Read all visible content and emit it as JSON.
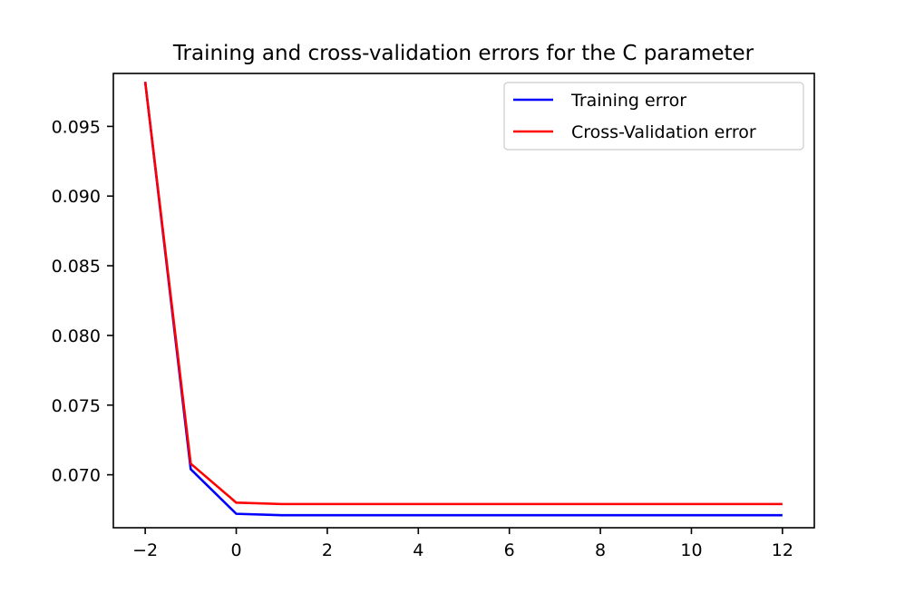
{
  "chart_data": {
    "type": "line",
    "title": "Training and cross-validation errors for the C parameter",
    "xlabel": "",
    "ylabel": "",
    "x": [
      -2,
      -1,
      0,
      1,
      2,
      3,
      4,
      5,
      6,
      7,
      8,
      9,
      10,
      11,
      12
    ],
    "xlim": [
      -2.7,
      12.7
    ],
    "ylim": [
      0.0662,
      0.0988
    ],
    "xticks": [
      -2,
      0,
      2,
      4,
      6,
      8,
      10,
      12
    ],
    "xtick_labels": [
      "−2",
      "0",
      "2",
      "4",
      "6",
      "8",
      "10",
      "12"
    ],
    "yticks": [
      0.07,
      0.075,
      0.08,
      0.085,
      0.09,
      0.095
    ],
    "ytick_labels": [
      "0.070",
      "0.075",
      "0.080",
      "0.085",
      "0.090",
      "0.095"
    ],
    "grid": false,
    "legend_position": "top-right",
    "series": [
      {
        "name": "Training error",
        "color": "#0000ff",
        "values": [
          0.0982,
          0.0704,
          0.0672,
          0.0671,
          0.0671,
          0.0671,
          0.0671,
          0.0671,
          0.0671,
          0.0671,
          0.0671,
          0.0671,
          0.0671,
          0.0671,
          0.0671
        ]
      },
      {
        "name": "Cross-Validation error",
        "color": "#ff0000",
        "values": [
          0.0982,
          0.0708,
          0.068,
          0.0679,
          0.0679,
          0.0679,
          0.0679,
          0.0679,
          0.0679,
          0.0679,
          0.0679,
          0.0679,
          0.0679,
          0.0679,
          0.0679
        ]
      }
    ]
  }
}
